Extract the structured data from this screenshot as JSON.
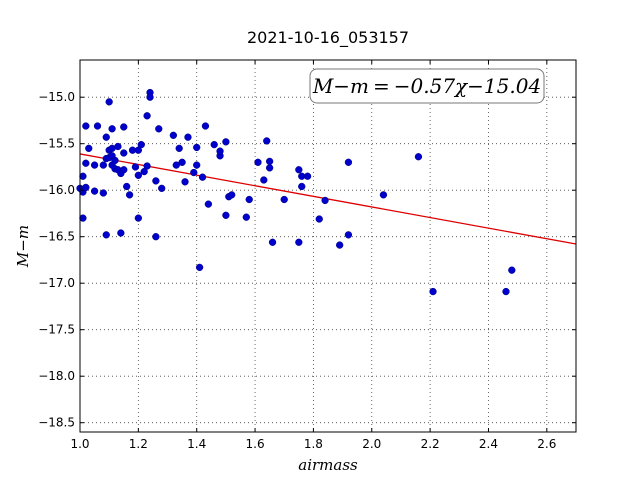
{
  "chart_data": {
    "type": "scatter",
    "title": "2021-10-16_053157",
    "xlabel": "airmass",
    "ylabel": "M−m",
    "xlim": [
      1.0,
      2.7
    ],
    "ylim": [
      -18.6,
      -14.6
    ],
    "x_ticks": [
      "1.0",
      "1.2",
      "1.4",
      "1.6",
      "1.8",
      "2.0",
      "2.2",
      "2.4",
      "2.6"
    ],
    "y_ticks": [
      "-15.0",
      "-15.5",
      "-16.0",
      "-16.5",
      "-17.0",
      "-17.5",
      "-18.0",
      "-18.5"
    ],
    "grid": true,
    "annotation": "M−m = −0.57χ−15.04",
    "fit_line": {
      "slope": -0.57,
      "intercept": -15.04
    },
    "colors": {
      "points": "#0000cc",
      "fit": "#dd0000"
    },
    "points": [
      [
        1.0,
        -15.98
      ],
      [
        1.01,
        -16.3
      ],
      [
        1.01,
        -15.85
      ],
      [
        1.01,
        -16.02
      ],
      [
        1.02,
        -15.31
      ],
      [
        1.02,
        -15.97
      ],
      [
        1.02,
        -15.71
      ],
      [
        1.03,
        -15.55
      ],
      [
        1.05,
        -16.01
      ],
      [
        1.05,
        -15.73
      ],
      [
        1.06,
        -15.31
      ],
      [
        1.08,
        -16.03
      ],
      [
        1.08,
        -15.73
      ],
      [
        1.09,
        -15.66
      ],
      [
        1.09,
        -15.43
      ],
      [
        1.09,
        -16.48
      ],
      [
        1.1,
        -15.05
      ],
      [
        1.1,
        -15.65
      ],
      [
        1.1,
        -15.57
      ],
      [
        1.11,
        -15.73
      ],
      [
        1.11,
        -15.55
      ],
      [
        1.11,
        -15.34
      ],
      [
        1.11,
        -15.63
      ],
      [
        1.12,
        -15.68
      ],
      [
        1.12,
        -15.77
      ],
      [
        1.13,
        -15.78
      ],
      [
        1.13,
        -15.53
      ],
      [
        1.14,
        -15.82
      ],
      [
        1.14,
        -16.46
      ],
      [
        1.15,
        -15.32
      ],
      [
        1.15,
        -15.6
      ],
      [
        1.15,
        -15.78
      ],
      [
        1.16,
        -15.96
      ],
      [
        1.17,
        -16.05
      ],
      [
        1.18,
        -15.57
      ],
      [
        1.19,
        -15.75
      ],
      [
        1.2,
        -16.3
      ],
      [
        1.2,
        -15.57
      ],
      [
        1.2,
        -15.84
      ],
      [
        1.21,
        -15.51
      ],
      [
        1.22,
        -15.8
      ],
      [
        1.23,
        -15.2
      ],
      [
        1.23,
        -15.74
      ],
      [
        1.24,
        -14.95
      ],
      [
        1.24,
        -15.0
      ],
      [
        1.26,
        -15.9
      ],
      [
        1.26,
        -16.5
      ],
      [
        1.27,
        -15.34
      ],
      [
        1.28,
        -15.98
      ],
      [
        1.32,
        -15.41
      ],
      [
        1.33,
        -15.73
      ],
      [
        1.34,
        -15.55
      ],
      [
        1.35,
        -15.7
      ],
      [
        1.36,
        -15.91
      ],
      [
        1.37,
        -15.43
      ],
      [
        1.39,
        -15.81
      ],
      [
        1.4,
        -15.73
      ],
      [
        1.4,
        -15.54
      ],
      [
        1.41,
        -16.83
      ],
      [
        1.42,
        -15.86
      ],
      [
        1.43,
        -15.31
      ],
      [
        1.44,
        -16.15
      ],
      [
        1.46,
        -15.51
      ],
      [
        1.48,
        -15.63
      ],
      [
        1.48,
        -15.58
      ],
      [
        1.5,
        -15.48
      ],
      [
        1.5,
        -16.27
      ],
      [
        1.51,
        -16.07
      ],
      [
        1.52,
        -16.05
      ],
      [
        1.57,
        -16.29
      ],
      [
        1.58,
        -16.1
      ],
      [
        1.61,
        -15.7
      ],
      [
        1.63,
        -15.89
      ],
      [
        1.64,
        -15.47
      ],
      [
        1.65,
        -15.69
      ],
      [
        1.65,
        -15.76
      ],
      [
        1.66,
        -16.56
      ],
      [
        1.7,
        -16.1
      ],
      [
        1.75,
        -16.56
      ],
      [
        1.75,
        -15.78
      ],
      [
        1.76,
        -15.96
      ],
      [
        1.76,
        -15.85
      ],
      [
        1.78,
        -15.85
      ],
      [
        1.82,
        -16.31
      ],
      [
        1.84,
        -16.11
      ],
      [
        1.89,
        -16.59
      ],
      [
        1.92,
        -15.7
      ],
      [
        1.92,
        -16.48
      ],
      [
        2.04,
        -16.05
      ],
      [
        2.16,
        -15.64
      ],
      [
        2.21,
        -17.09
      ],
      [
        2.46,
        -17.09
      ],
      [
        2.48,
        -16.86
      ]
    ]
  }
}
